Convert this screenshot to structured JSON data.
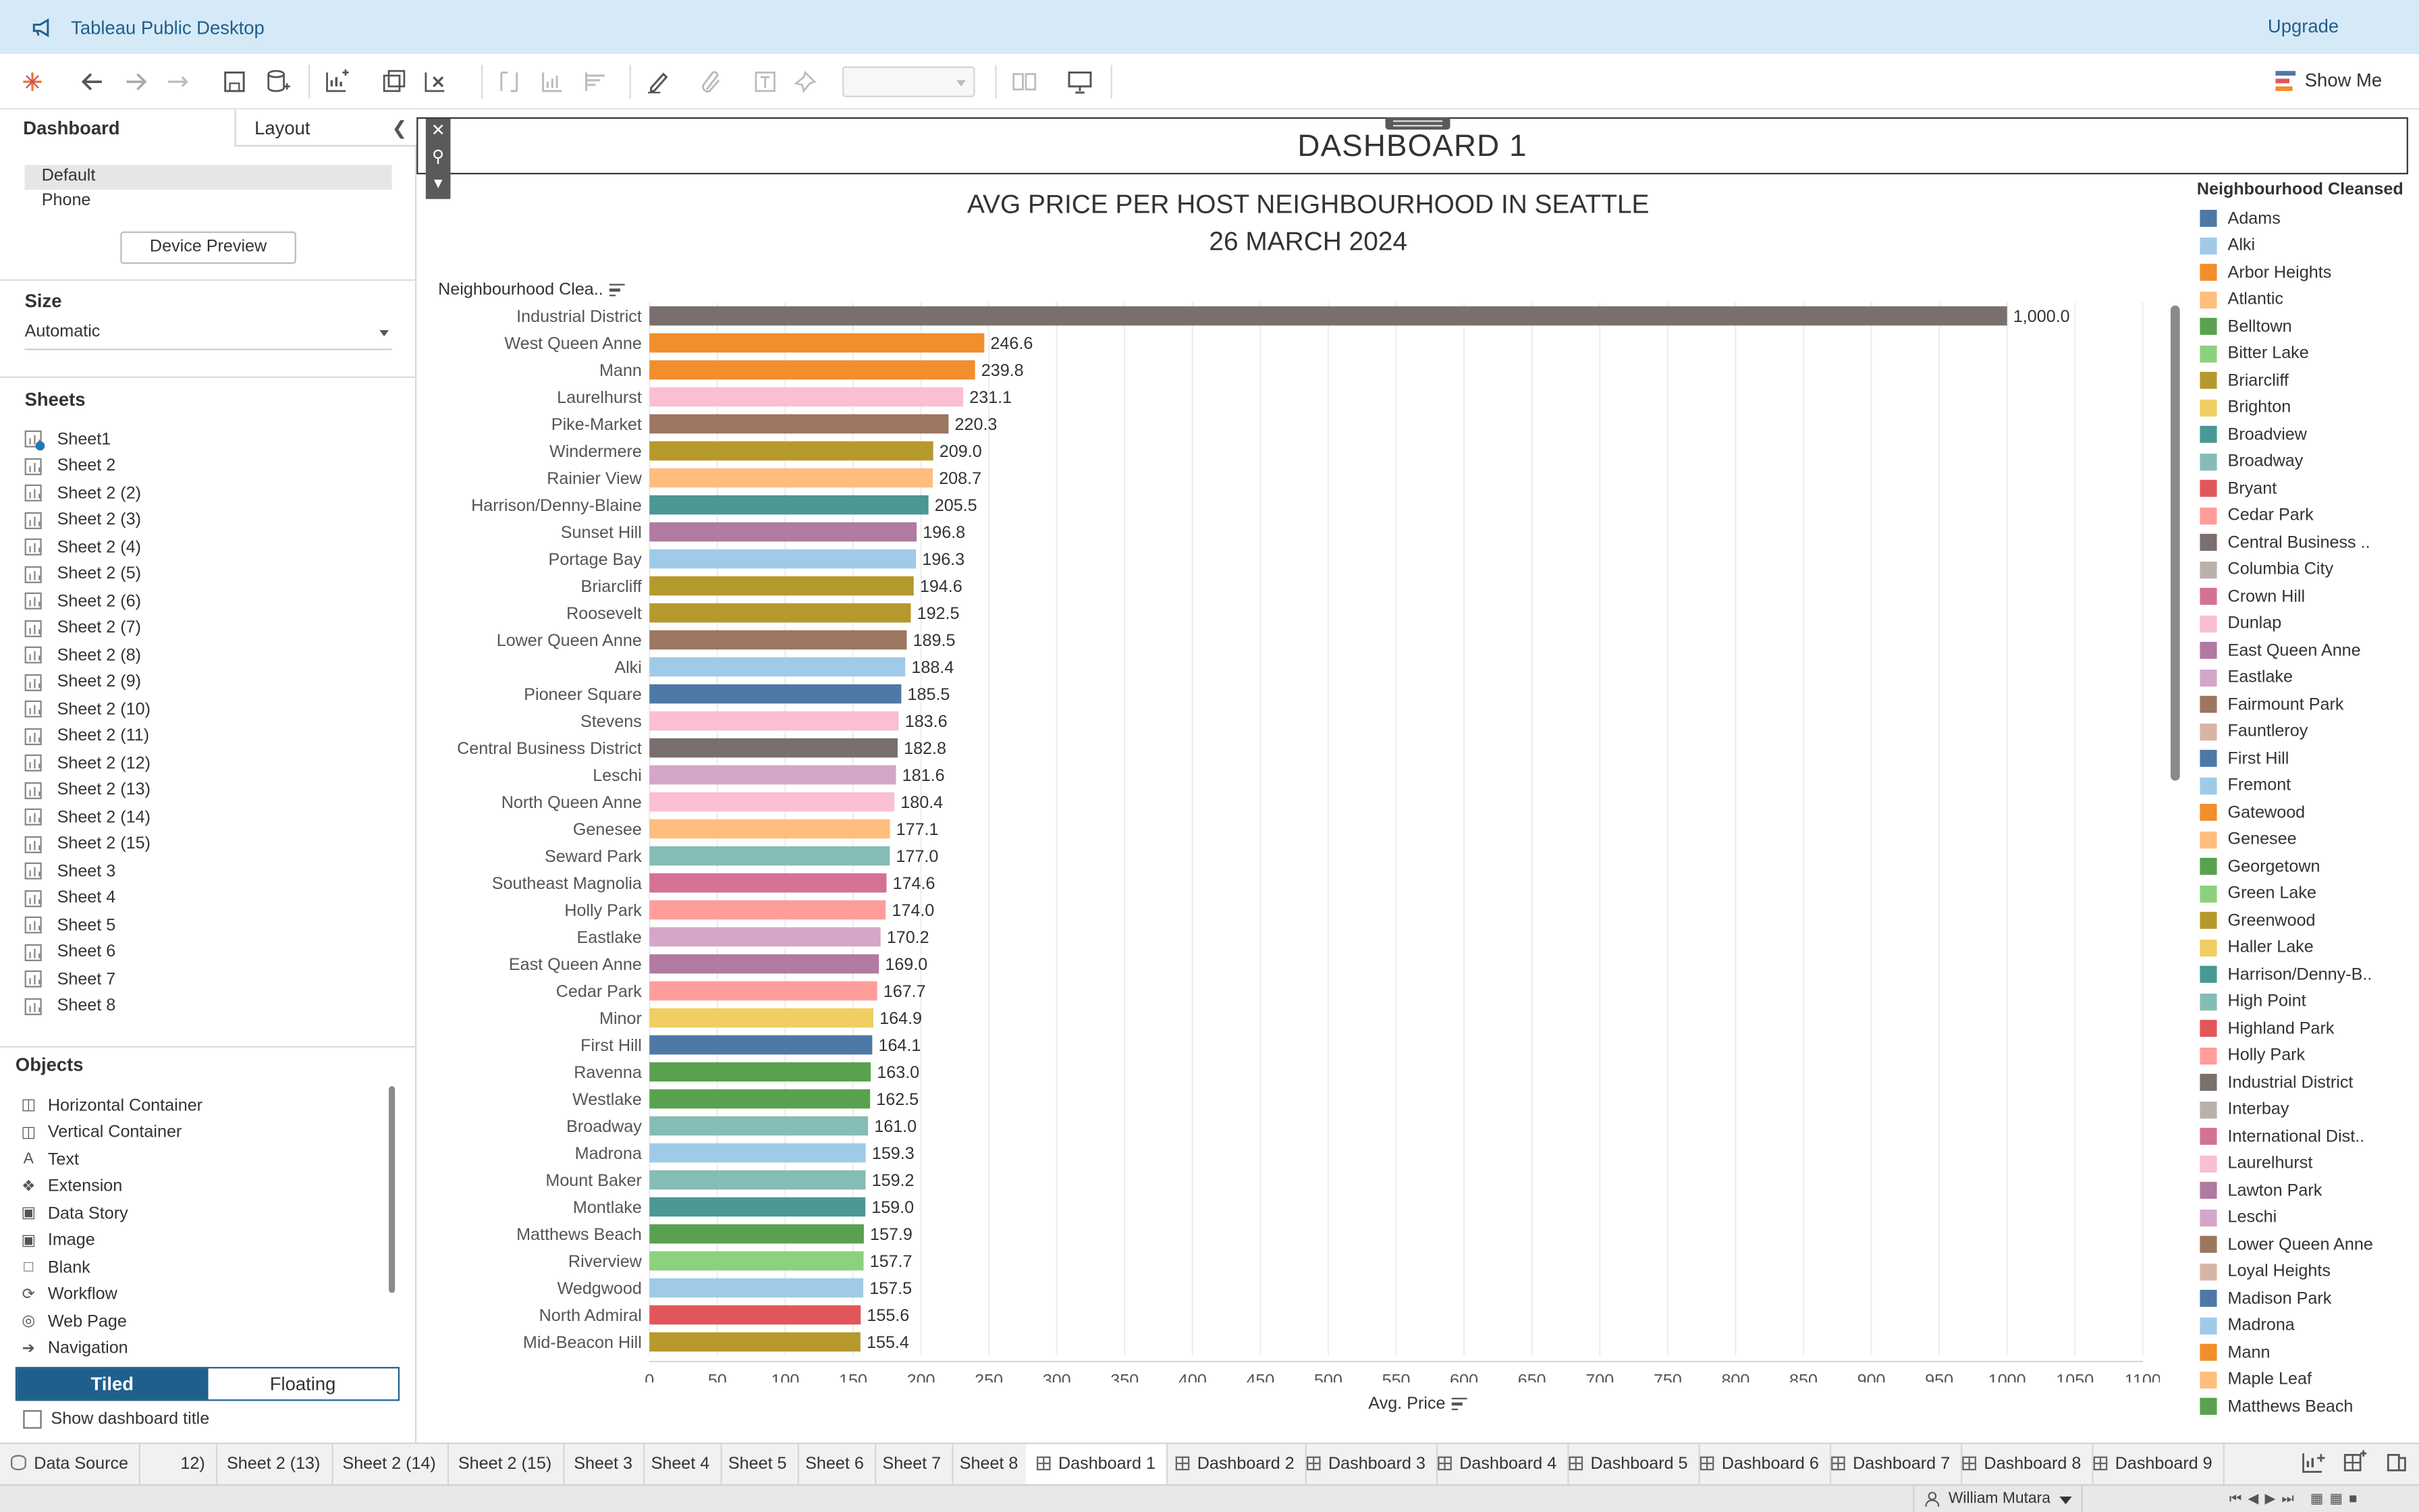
{
  "app": {
    "title": "Tableau Public Desktop",
    "upgrade_label": "Upgrade",
    "show_me_label": "Show Me"
  },
  "left_panel": {
    "tab_dashboard": "Dashboard",
    "tab_layout": "Layout",
    "device_options": [
      "Default",
      "Phone"
    ],
    "device_preview_label": "Device Preview",
    "size_heading": "Size",
    "size_value": "Automatic",
    "sheets_heading": "Sheets",
    "sheets": [
      "Sheet1",
      "Sheet 2",
      "Sheet 2 (2)",
      "Sheet 2 (3)",
      "Sheet 2 (4)",
      "Sheet 2 (5)",
      "Sheet 2 (6)",
      "Sheet 2 (7)",
      "Sheet 2 (8)",
      "Sheet 2 (9)",
      "Sheet 2 (10)",
      "Sheet 2 (11)",
      "Sheet 2 (12)",
      "Sheet 2 (13)",
      "Sheet 2 (14)",
      "Sheet 2 (15)",
      "Sheet 3",
      "Sheet 4",
      "Sheet 5",
      "Sheet 6",
      "Sheet 7",
      "Sheet 8"
    ],
    "objects_heading": "Objects",
    "objects": [
      {
        "label": "Horizontal Container",
        "icon": "horizontal-container-icon"
      },
      {
        "label": "Vertical Container",
        "icon": "vertical-container-icon"
      },
      {
        "label": "Text",
        "icon": "text-icon"
      },
      {
        "label": "Extension",
        "icon": "extension-icon"
      },
      {
        "label": "Data Story",
        "icon": "data-story-icon"
      },
      {
        "label": "Image",
        "icon": "image-icon"
      },
      {
        "label": "Blank",
        "icon": "blank-icon"
      },
      {
        "label": "Workflow",
        "icon": "workflow-icon"
      },
      {
        "label": "Web Page",
        "icon": "web-page-icon"
      },
      {
        "label": "Navigation",
        "icon": "navigation-icon"
      }
    ],
    "tiled_label": "Tiled",
    "floating_label": "Floating",
    "show_title_label": "Show dashboard title"
  },
  "dashboard": {
    "title": "DASHBOARD 1",
    "chart_title_line1": "AVG PRICE PER HOST NEIGHBOURHOOD IN SEATTLE",
    "chart_title_line2": "26 MARCH 2024",
    "rows_header": "Neighbourhood Clea..",
    "x_axis_label": "Avg. Price"
  },
  "chart_data": {
    "type": "bar",
    "orientation": "horizontal",
    "title": "AVG PRICE PER HOST NEIGHBOURHOOD IN SEATTLE",
    "subtitle": "26 MARCH 2024",
    "xlabel": "Avg. Price",
    "ylabel": "Neighbourhood Clea..",
    "xlim": [
      0,
      1100
    ],
    "x_ticks": [
      0,
      50,
      100,
      150,
      200,
      250,
      300,
      350,
      400,
      450,
      500,
      550,
      600,
      650,
      700,
      750,
      800,
      850,
      900,
      950,
      1000,
      1050,
      1100
    ],
    "grid": true,
    "categories": [
      "Industrial District",
      "West Queen Anne",
      "Mann",
      "Laurelhurst",
      "Pike-Market",
      "Windermere",
      "Rainier View",
      "Harrison/Denny-Blaine",
      "Sunset Hill",
      "Portage Bay",
      "Briarcliff",
      "Roosevelt",
      "Lower Queen Anne",
      "Alki",
      "Pioneer Square",
      "Stevens",
      "Central Business District",
      "Leschi",
      "North Queen Anne",
      "Genesee",
      "Seward Park",
      "Southeast Magnolia",
      "Holly Park",
      "Eastlake",
      "East Queen Anne",
      "Cedar Park",
      "Minor",
      "First Hill",
      "Ravenna",
      "Westlake",
      "Broadway",
      "Madrona",
      "Mount Baker",
      "Montlake",
      "Matthews Beach",
      "Riverview",
      "Wedgwood",
      "North Admiral",
      "Mid-Beacon Hill"
    ],
    "values": [
      1000.0,
      246.6,
      239.8,
      231.1,
      220.3,
      209.0,
      208.7,
      205.5,
      196.8,
      196.3,
      194.6,
      192.5,
      189.5,
      188.4,
      185.5,
      183.6,
      182.8,
      181.6,
      180.4,
      177.1,
      177.0,
      174.6,
      174.0,
      170.2,
      169.0,
      167.7,
      164.9,
      164.1,
      163.0,
      162.5,
      161.0,
      159.3,
      159.2,
      159.0,
      157.9,
      157.7,
      157.5,
      155.6,
      155.4
    ],
    "value_labels": [
      "1,000.0",
      "246.6",
      "239.8",
      "231.1",
      "220.3",
      "209.0",
      "208.7",
      "205.5",
      "196.8",
      "196.3",
      "194.6",
      "192.5",
      "189.5",
      "188.4",
      "185.5",
      "183.6",
      "182.8",
      "181.6",
      "180.4",
      "177.1",
      "177.0",
      "174.6",
      "174.0",
      "170.2",
      "169.0",
      "167.7",
      "164.9",
      "164.1",
      "163.0",
      "162.5",
      "161.0",
      "159.3",
      "159.2",
      "159.0",
      "157.9",
      "157.7",
      "157.5",
      "155.6",
      "155.4"
    ],
    "colors": [
      "#79706e",
      "#f28e2b",
      "#f28e2b",
      "#fabfd2",
      "#9d7660",
      "#b6992d",
      "#ffbe7d",
      "#499894",
      "#b07aa1",
      "#a0cbe8",
      "#b6992d",
      "#b6992d",
      "#9d7660",
      "#a0cbe8",
      "#4e79a7",
      "#fabfd2",
      "#79706e",
      "#d4a6c8",
      "#fabfd2",
      "#ffbe7d",
      "#86bcb6",
      "#d37295",
      "#ff9d9a",
      "#d4a6c8",
      "#b07aa1",
      "#ff9d9a",
      "#f1ce63",
      "#4e79a7",
      "#59a14f",
      "#59a14f",
      "#86bcb6",
      "#a0cbe8",
      "#86bcb6",
      "#499894",
      "#59a14f",
      "#8cd17d",
      "#a0cbe8",
      "#e15759",
      "#b6992d"
    ],
    "legend": {
      "title": "Neighbourhood Cleansed",
      "placement": "right",
      "items": [
        {
          "label": "Adams",
          "color": "#4e79a7"
        },
        {
          "label": "Alki",
          "color": "#a0cbe8"
        },
        {
          "label": "Arbor Heights",
          "color": "#f28e2b"
        },
        {
          "label": "Atlantic",
          "color": "#ffbe7d"
        },
        {
          "label": "Belltown",
          "color": "#59a14f"
        },
        {
          "label": "Bitter Lake",
          "color": "#8cd17d"
        },
        {
          "label": "Briarcliff",
          "color": "#b6992d"
        },
        {
          "label": "Brighton",
          "color": "#f1ce63"
        },
        {
          "label": "Broadview",
          "color": "#499894"
        },
        {
          "label": "Broadway",
          "color": "#86bcb6"
        },
        {
          "label": "Bryant",
          "color": "#e15759"
        },
        {
          "label": "Cedar Park",
          "color": "#ff9d9a"
        },
        {
          "label": "Central Business ..",
          "color": "#79706e"
        },
        {
          "label": "Columbia City",
          "color": "#bab0ac"
        },
        {
          "label": "Crown Hill",
          "color": "#d37295"
        },
        {
          "label": "Dunlap",
          "color": "#fabfd2"
        },
        {
          "label": "East Queen Anne",
          "color": "#b07aa1"
        },
        {
          "label": "Eastlake",
          "color": "#d4a6c8"
        },
        {
          "label": "Fairmount Park",
          "color": "#9d7660"
        },
        {
          "label": "Fauntleroy",
          "color": "#d7b5a6"
        },
        {
          "label": "First Hill",
          "color": "#4e79a7"
        },
        {
          "label": "Fremont",
          "color": "#a0cbe8"
        },
        {
          "label": "Gatewood",
          "color": "#f28e2b"
        },
        {
          "label": "Genesee",
          "color": "#ffbe7d"
        },
        {
          "label": "Georgetown",
          "color": "#59a14f"
        },
        {
          "label": "Green Lake",
          "color": "#8cd17d"
        },
        {
          "label": "Greenwood",
          "color": "#b6992d"
        },
        {
          "label": "Haller Lake",
          "color": "#f1ce63"
        },
        {
          "label": "Harrison/Denny-B..",
          "color": "#499894"
        },
        {
          "label": "High Point",
          "color": "#86bcb6"
        },
        {
          "label": "Highland Park",
          "color": "#e15759"
        },
        {
          "label": "Holly Park",
          "color": "#ff9d9a"
        },
        {
          "label": "Industrial District",
          "color": "#79706e"
        },
        {
          "label": "Interbay",
          "color": "#bab0ac"
        },
        {
          "label": "International Dist..",
          "color": "#d37295"
        },
        {
          "label": "Laurelhurst",
          "color": "#fabfd2"
        },
        {
          "label": "Lawton Park",
          "color": "#b07aa1"
        },
        {
          "label": "Leschi",
          "color": "#d4a6c8"
        },
        {
          "label": "Lower Queen Anne",
          "color": "#9d7660"
        },
        {
          "label": "Loyal Heights",
          "color": "#d7b5a6"
        },
        {
          "label": "Madison Park",
          "color": "#4e79a7"
        },
        {
          "label": "Madrona",
          "color": "#a0cbe8"
        },
        {
          "label": "Mann",
          "color": "#f28e2b"
        },
        {
          "label": "Maple Leaf",
          "color": "#ffbe7d"
        },
        {
          "label": "Matthews Beach",
          "color": "#59a14f"
        }
      ]
    }
  },
  "bottom_tabs": [
    {
      "label": "Data Source",
      "kind": "data-source"
    },
    {
      "label": "12)",
      "kind": "sheet"
    },
    {
      "label": "Sheet 2 (13)",
      "kind": "sheet"
    },
    {
      "label": "Sheet 2 (14)",
      "kind": "sheet"
    },
    {
      "label": "Sheet 2 (15)",
      "kind": "sheet"
    },
    {
      "label": "Sheet 3",
      "kind": "sheet"
    },
    {
      "label": "Sheet 4",
      "kind": "sheet"
    },
    {
      "label": "Sheet 5",
      "kind": "sheet"
    },
    {
      "label": "Sheet 6",
      "kind": "sheet"
    },
    {
      "label": "Sheet 7",
      "kind": "sheet"
    },
    {
      "label": "Sheet 8",
      "kind": "sheet"
    },
    {
      "label": "Dashboard 1",
      "kind": "dashboard",
      "active": true
    },
    {
      "label": "Dashboard 2",
      "kind": "dashboard"
    },
    {
      "label": "Dashboard 3",
      "kind": "dashboard"
    },
    {
      "label": "Dashboard 4",
      "kind": "dashboard"
    },
    {
      "label": "Dashboard 5",
      "kind": "dashboard"
    },
    {
      "label": "Dashboard 6",
      "kind": "dashboard"
    },
    {
      "label": "Dashboard 7",
      "kind": "dashboard"
    },
    {
      "label": "Dashboard 8",
      "kind": "dashboard"
    },
    {
      "label": "Dashboard 9",
      "kind": "dashboard"
    }
  ],
  "status": {
    "user_name": "William Mutara"
  },
  "colors": {
    "title_bar": "#d6e9f7",
    "accent": "#1f5f8b"
  }
}
